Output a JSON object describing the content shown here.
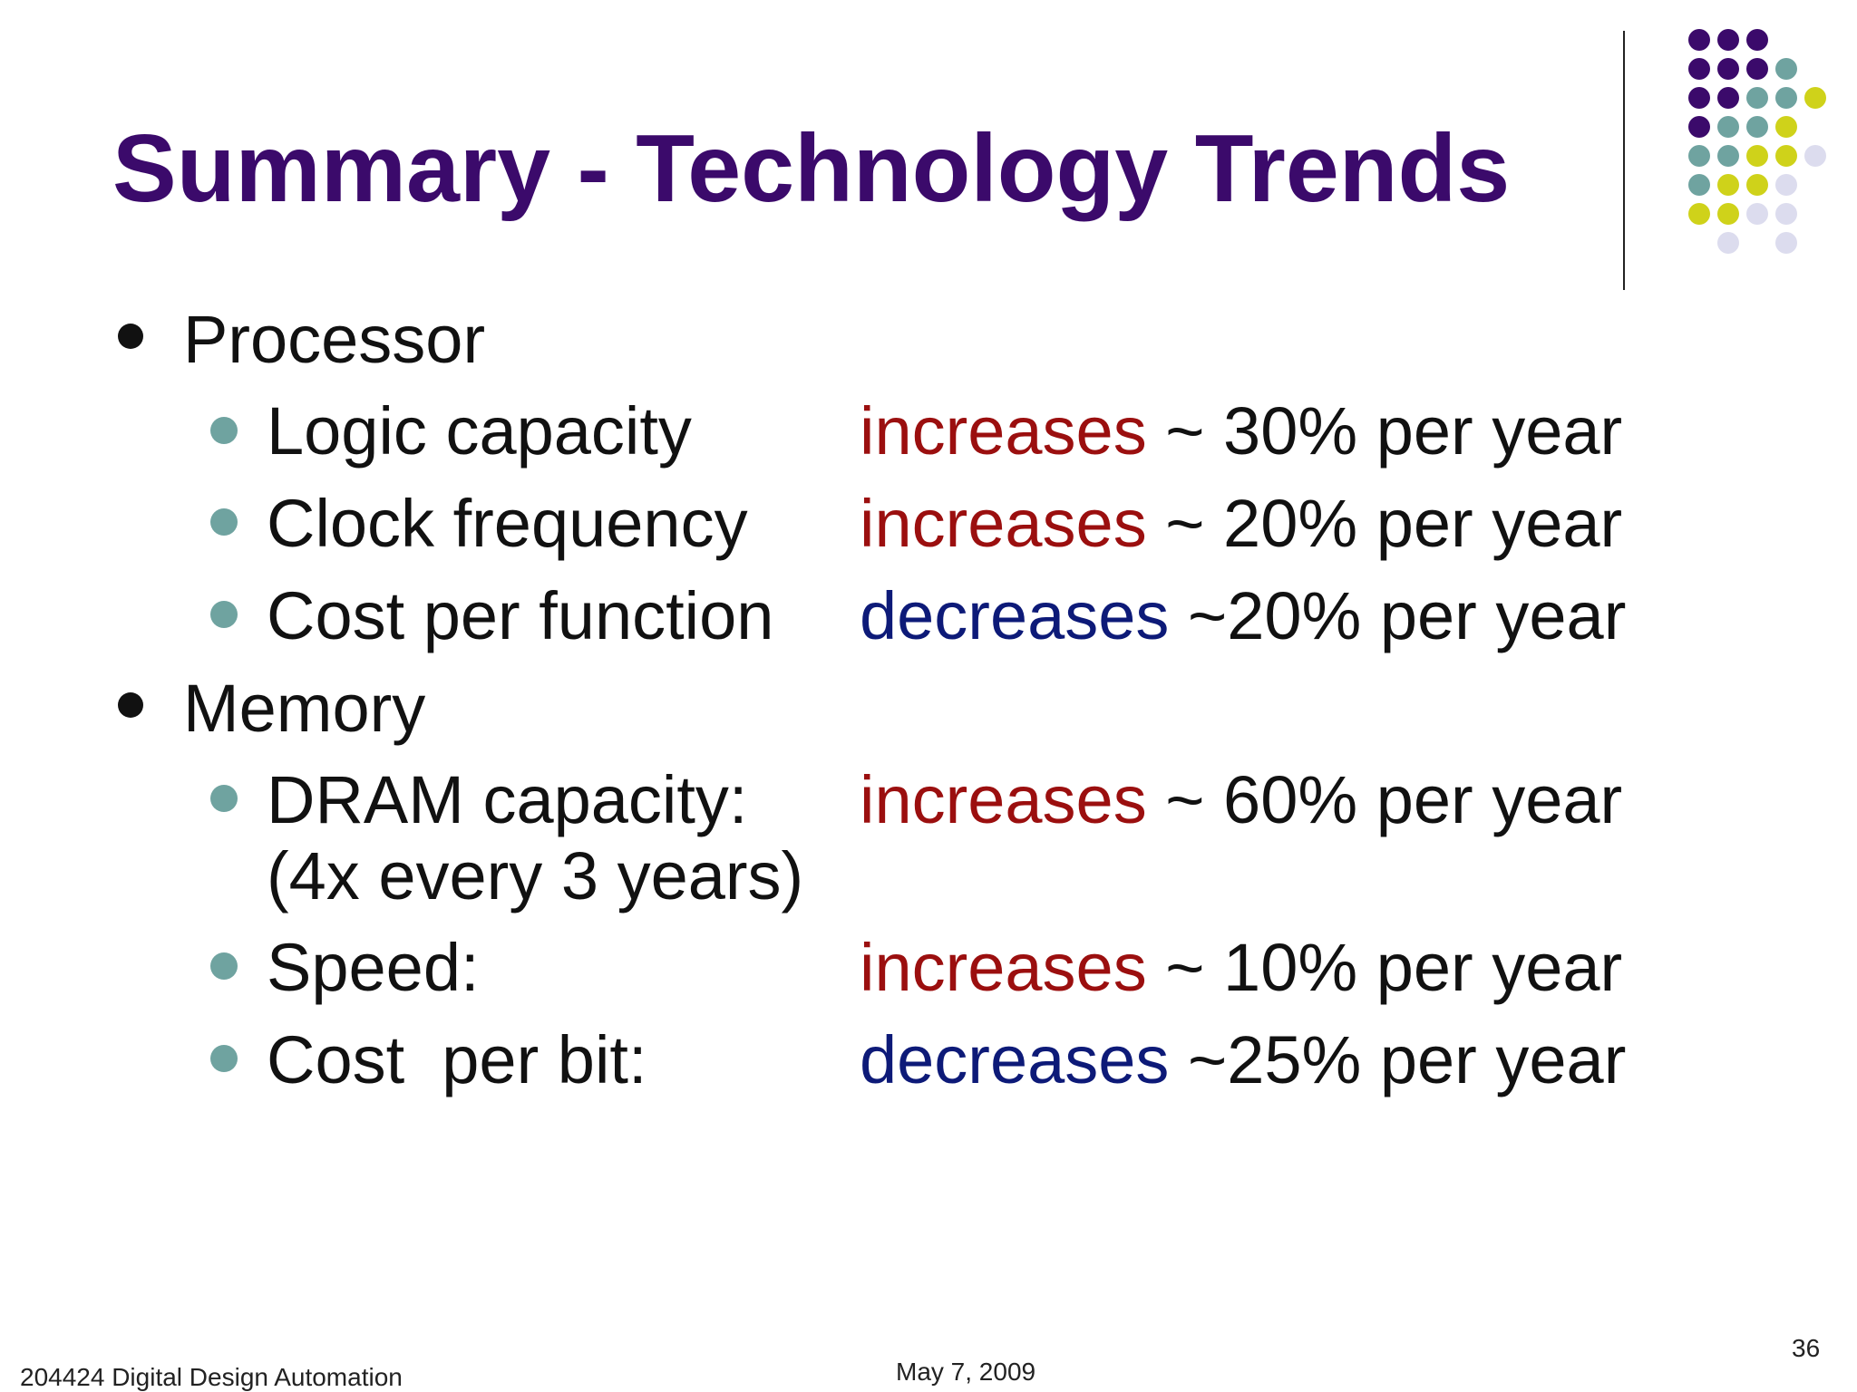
{
  "slide": {
    "title": "Summary - Technology Trends",
    "title_color": "#3b0a6b",
    "bullets": [
      {
        "label": "Processor",
        "items": [
          {
            "label": "Logic capacity",
            "verb": "increases",
            "rest": " ~ 30% per year"
          },
          {
            "label": "Clock frequency",
            "verb": "increases",
            "rest": " ~ 20% per year"
          },
          {
            "label": "Cost per function",
            "verb": "decreases",
            "rest": " ~20% per year"
          }
        ]
      },
      {
        "label": "Memory",
        "items": [
          {
            "label": "DRAM capacity:",
            "sublabel": "(4x every 3 years)",
            "verb": "increases",
            "rest": " ~ 60% per year"
          },
          {
            "label": "Speed:",
            "verb": "increases",
            "rest": " ~ 10% per year"
          },
          {
            "label": "Cost  per bit:",
            "verb": "decreases",
            "rest": " ~25% per year"
          }
        ]
      }
    ]
  },
  "colors": {
    "increases": "#9b0f0f",
    "decreases": "#0d1a78",
    "sub_bullet": "#6fa3a0",
    "dots_purple": "#3b0a6b",
    "dots_teal": "#6fa3a0",
    "dots_yellow": "#cfd21a",
    "dots_lavender": "#dcdcee"
  },
  "footer": {
    "course": "204424 Digital Design Automation",
    "date": "May 7, 2009",
    "page_number": "36"
  }
}
